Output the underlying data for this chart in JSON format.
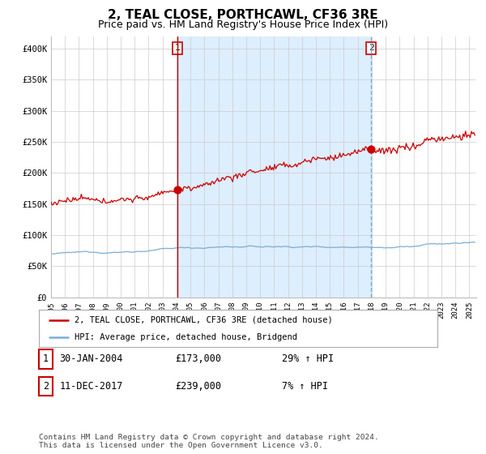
{
  "title": "2, TEAL CLOSE, PORTHCAWL, CF36 3RE",
  "subtitle": "Price paid vs. HM Land Registry's House Price Index (HPI)",
  "title_fontsize": 11,
  "subtitle_fontsize": 9,
  "ylim": [
    0,
    420000
  ],
  "yticks": [
    0,
    50000,
    100000,
    150000,
    200000,
    250000,
    300000,
    350000,
    400000
  ],
  "ytick_labels": [
    "£0",
    "£50K",
    "£100K",
    "£150K",
    "£200K",
    "£250K",
    "£300K",
    "£350K",
    "£400K"
  ],
  "line1_color": "#cc0000",
  "line2_color": "#7aaed6",
  "shade_color": "#ddeeff",
  "marker1_date_x": 2004.08,
  "marker1_y": 173000,
  "marker2_date_x": 2017.95,
  "marker2_y": 239000,
  "vline1_color": "#cc0000",
  "vline1_style": "-",
  "vline2_color": "#7aaed6",
  "vline2_style": "--",
  "legend_line1": "2, TEAL CLOSE, PORTHCAWL, CF36 3RE (detached house)",
  "legend_line2": "HPI: Average price, detached house, Bridgend",
  "table_rows": [
    {
      "num": "1",
      "date": "30-JAN-2004",
      "price": "£173,000",
      "change": "29% ↑ HPI"
    },
    {
      "num": "2",
      "date": "11-DEC-2017",
      "price": "£239,000",
      "change": "7% ↑ HPI"
    }
  ],
  "footer": "Contains HM Land Registry data © Crown copyright and database right 2024.\nThis data is licensed under the Open Government Licence v3.0.",
  "background_color": "#ffffff",
  "grid_color": "#cccccc",
  "xlim_start": 1995,
  "xlim_end": 2025.5
}
